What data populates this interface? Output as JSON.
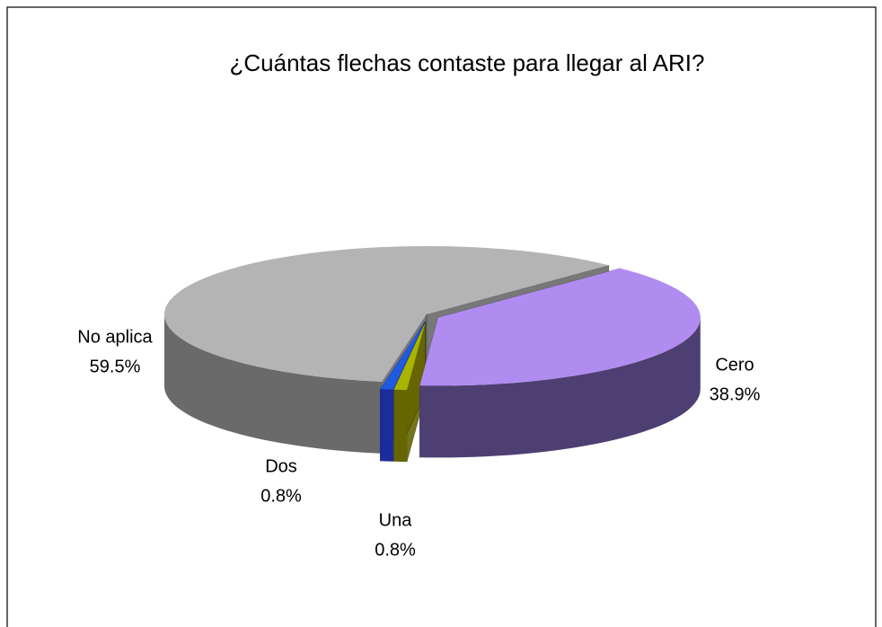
{
  "chart_data": {
    "type": "pie3d",
    "title": "¿Cuántas flechas contaste para llegar al ARI?",
    "categories": [
      "Cero",
      "Una",
      "Dos",
      "No aplica"
    ],
    "values": [
      38.9,
      0.8,
      0.8,
      59.5
    ],
    "value_labels": [
      "38.9%",
      "0.8%",
      "0.8%",
      "59.5%"
    ],
    "colors": [
      "#b08cf0",
      "#a8b400",
      "#1f5ae0",
      "#b4b4b4"
    ],
    "side_colors": [
      "#4e3f72",
      "#666600",
      "#1c2c9a",
      "#6a6a6a"
    ]
  }
}
